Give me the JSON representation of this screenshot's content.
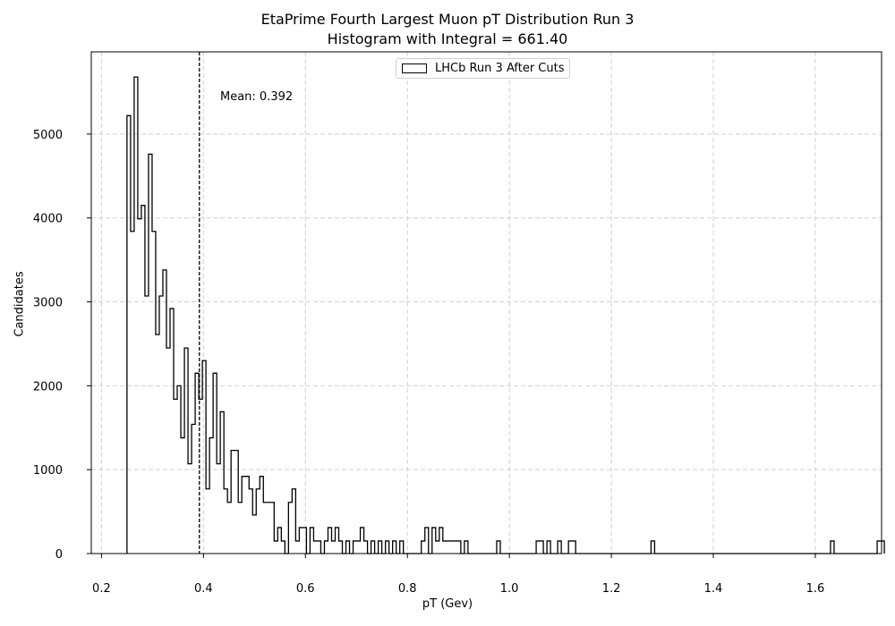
{
  "chart_data": {
    "type": "histogram",
    "title": "EtaPrime Fourth Largest Muon pT Distribution Run 3",
    "subtitle": "Histogram with Integral = 661.40",
    "xlabel": "pT (Gev)",
    "ylabel": "Candidates",
    "xlim": [
      0.18,
      1.73
    ],
    "ylim": [
      0,
      5980
    ],
    "xticks": [
      0.2,
      0.4,
      0.6,
      0.8,
      1.0,
      1.2,
      1.4,
      1.6
    ],
    "xtick_labels": [
      "0.2",
      "0.4",
      "0.6",
      "0.8",
      "1.0",
      "1.2",
      "1.4",
      "1.6"
    ],
    "yticks": [
      0,
      1000,
      2000,
      3000,
      4000,
      5000
    ],
    "ytick_labels": [
      "0",
      "1000",
      "2000",
      "3000",
      "4000",
      "5000"
    ],
    "grid": true,
    "legend_position": "top-center",
    "series": [
      {
        "name": "LHCb Run 3 After Cuts",
        "style": "step",
        "color": "#000000",
        "bin_start": 0.25,
        "bin_width": 0.00704,
        "values": [
          5220,
          3840,
          5680,
          3990,
          4150,
          3070,
          4760,
          3840,
          2610,
          3070,
          3380,
          2450,
          2920,
          1840,
          2000,
          1380,
          2450,
          1070,
          1540,
          2150,
          1840,
          2300,
          770,
          1380,
          2150,
          1070,
          1690,
          770,
          610,
          1230,
          1230,
          610,
          920,
          920,
          770,
          460,
          770,
          920,
          610,
          610,
          610,
          150,
          310,
          150,
          0,
          610,
          770,
          150,
          310,
          310,
          0,
          310,
          150,
          150,
          0,
          150,
          310,
          150,
          310,
          150,
          0,
          150,
          0,
          150,
          150,
          310,
          150,
          0,
          150,
          0,
          150,
          0,
          150,
          0,
          150,
          0,
          150,
          0,
          0,
          0,
          0,
          0,
          150,
          310,
          0,
          310,
          150,
          310,
          150,
          150,
          150,
          150,
          150,
          0,
          150,
          0,
          0,
          0,
          0,
          0,
          0,
          0,
          0,
          150,
          0,
          0,
          0,
          0,
          0,
          0,
          0,
          0,
          0,
          0,
          150,
          150,
          0,
          150,
          0,
          0,
          150,
          0,
          0,
          150,
          150,
          0,
          0,
          0,
          0,
          0,
          0,
          0,
          0,
          0,
          0,
          0,
          0,
          0,
          0,
          0,
          0,
          0,
          0,
          0,
          0,
          0,
          150,
          0,
          0,
          0,
          0,
          0,
          0,
          0,
          0,
          0,
          0,
          0,
          0,
          0,
          0,
          0,
          0,
          0,
          0,
          0,
          0,
          0,
          0,
          0,
          0,
          0,
          0,
          0,
          0,
          0,
          0,
          0,
          0,
          0,
          0,
          0,
          0,
          0,
          0,
          0,
          0,
          0,
          0,
          0,
          0,
          0,
          0,
          0,
          0,
          0,
          150,
          0,
          0,
          0,
          0,
          0,
          0,
          0,
          0,
          0,
          0,
          0,
          0,
          150,
          150
        ]
      }
    ],
    "mean_line": {
      "x": 0.392,
      "label": "Mean: 0.392",
      "style": "dashed",
      "color": "#000000"
    }
  }
}
